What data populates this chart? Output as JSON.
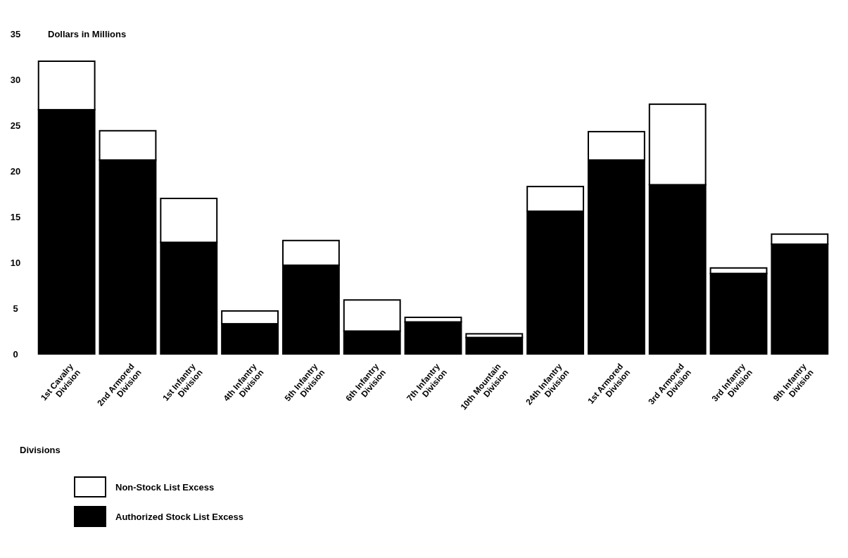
{
  "chart_data": {
    "type": "bar",
    "stacked": true,
    "ylabel": "Dollars in Millions",
    "xlabel": "Divisions",
    "legend": "bottom",
    "ylim": [
      0,
      35
    ],
    "yticks": [
      0,
      5,
      10,
      15,
      20,
      25,
      30,
      35
    ],
    "grid": false,
    "categories": [
      "1st Cavalry Division",
      "2nd Armored Division",
      "1st Infantry Division",
      "4th Infantry Division",
      "5th Infantry Division",
      "6th Infantry Division",
      "7th Infantry Division",
      "10th Mountain Division",
      "24th Infantry Division",
      "1st Armored Division",
      "3rd Armored Division",
      "3rd Infantry Division",
      "9th Infantry Division"
    ],
    "series": [
      {
        "name": "Authorized Stock List Excess",
        "color": "#000000",
        "values": [
          26.7,
          21.2,
          12.2,
          3.3,
          9.7,
          2.5,
          3.5,
          1.8,
          15.6,
          21.2,
          18.5,
          8.8,
          12.0
        ]
      },
      {
        "name": "Non-Stock List Excess",
        "color": "#ffffff",
        "values": [
          5.3,
          3.2,
          4.8,
          1.4,
          2.7,
          3.4,
          0.5,
          0.4,
          2.7,
          3.1,
          8.8,
          0.6,
          1.1
        ]
      }
    ]
  }
}
